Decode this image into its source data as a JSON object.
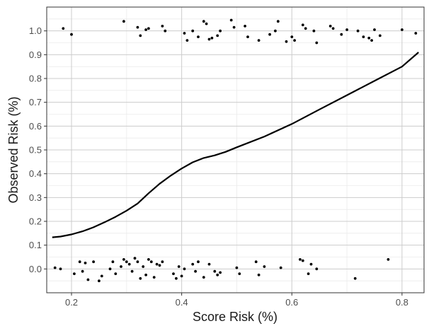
{
  "chart_data": {
    "type": "scatter",
    "xlabel": "Score Risk (%)",
    "ylabel": "Observed Risk (%)",
    "xlim": [
      0.155,
      0.84
    ],
    "ylim": [
      -0.1,
      1.1
    ],
    "x_ticks": [
      0.2,
      0.4,
      0.6,
      0.8
    ],
    "y_ticks": [
      0.0,
      0.1,
      0.2,
      0.3,
      0.4,
      0.5,
      0.6,
      0.7,
      0.8,
      0.9,
      1.0
    ],
    "grid": true,
    "colors": {
      "points": "#000000",
      "curve": "#000000",
      "grid_major": "#cccccc",
      "grid_minor": "#ebebeb",
      "panel_border": "#333333"
    },
    "series": [
      {
        "type": "line",
        "x": [
          0.165,
          0.18,
          0.2,
          0.22,
          0.24,
          0.26,
          0.28,
          0.3,
          0.32,
          0.34,
          0.36,
          0.38,
          0.4,
          0.42,
          0.44,
          0.46,
          0.48,
          0.5,
          0.55,
          0.6,
          0.65,
          0.7,
          0.75,
          0.8,
          0.83
        ],
        "y": [
          0.133,
          0.136,
          0.145,
          0.158,
          0.175,
          0.196,
          0.219,
          0.245,
          0.275,
          0.318,
          0.358,
          0.392,
          0.422,
          0.448,
          0.466,
          0.477,
          0.492,
          0.511,
          0.556,
          0.609,
          0.67,
          0.73,
          0.79,
          0.85,
          0.91
        ]
      },
      {
        "type": "scatter",
        "x": [
          0.185,
          0.2,
          0.295,
          0.32,
          0.325,
          0.335,
          0.34,
          0.365,
          0.37,
          0.405,
          0.41,
          0.42,
          0.43,
          0.44,
          0.445,
          0.45,
          0.455,
          0.465,
          0.47,
          0.49,
          0.495,
          0.515,
          0.52,
          0.54,
          0.56,
          0.57,
          0.575,
          0.59,
          0.6,
          0.605,
          0.62,
          0.625,
          0.64,
          0.645,
          0.67,
          0.675,
          0.69,
          0.7,
          0.72,
          0.73,
          0.74,
          0.745,
          0.75,
          0.76,
          0.8,
          0.825
        ],
        "y": [
          1.01,
          0.985,
          1.04,
          1.015,
          0.98,
          1.005,
          1.01,
          1.02,
          1.0,
          0.99,
          0.96,
          1.0,
          0.975,
          1.04,
          1.03,
          0.965,
          0.97,
          0.98,
          1.0,
          1.045,
          1.015,
          1.02,
          0.975,
          0.96,
          0.985,
          1.0,
          1.04,
          0.955,
          0.975,
          0.96,
          1.025,
          1.01,
          1.0,
          0.95,
          1.02,
          1.01,
          0.985,
          1.005,
          1.0,
          0.975,
          0.97,
          0.96,
          1.005,
          0.98,
          1.005,
          0.99
        ]
      },
      {
        "type": "scatter",
        "x": [
          0.17,
          0.18,
          0.205,
          0.215,
          0.22,
          0.225,
          0.23,
          0.24,
          0.25,
          0.255,
          0.27,
          0.275,
          0.28,
          0.29,
          0.295,
          0.3,
          0.305,
          0.31,
          0.315,
          0.32,
          0.325,
          0.33,
          0.335,
          0.34,
          0.345,
          0.35,
          0.355,
          0.36,
          0.365,
          0.385,
          0.39,
          0.395,
          0.4,
          0.405,
          0.42,
          0.425,
          0.43,
          0.44,
          0.45,
          0.46,
          0.465,
          0.47,
          0.5,
          0.505,
          0.535,
          0.54,
          0.55,
          0.58,
          0.615,
          0.62,
          0.63,
          0.635,
          0.645,
          0.715,
          0.775
        ],
        "y": [
          0.005,
          0.0,
          -0.02,
          0.03,
          -0.01,
          0.025,
          -0.045,
          0.03,
          -0.05,
          -0.03,
          0.0,
          0.03,
          -0.02,
          0.01,
          0.04,
          0.03,
          0.02,
          -0.01,
          0.045,
          0.03,
          -0.04,
          0.01,
          -0.025,
          0.04,
          0.03,
          -0.035,
          0.02,
          0.015,
          0.03,
          -0.02,
          -0.04,
          0.01,
          -0.03,
          0.0,
          0.02,
          -0.01,
          0.03,
          -0.035,
          0.02,
          -0.01,
          -0.025,
          -0.015,
          0.005,
          -0.02,
          0.03,
          -0.025,
          0.01,
          0.005,
          0.04,
          0.035,
          -0.02,
          0.02,
          0.0,
          -0.04,
          0.04
        ]
      }
    ]
  }
}
